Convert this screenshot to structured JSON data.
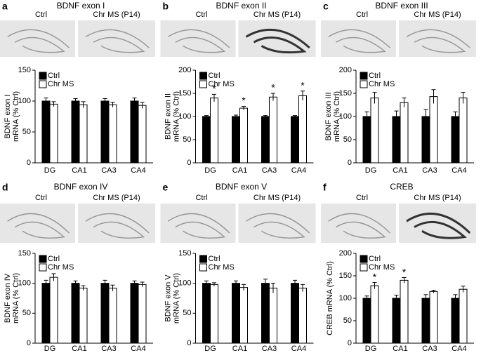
{
  "chart_data": [
    {
      "type": "bar",
      "panel_label": "a",
      "title": "BDNF exon I",
      "image_labels": [
        "Ctrl",
        "Chr MS (P14)"
      ],
      "ylabel": [
        "BDNF exon I",
        "mRNA (% Ctrl)"
      ],
      "categories": [
        "DG",
        "CA1",
        "CA3",
        "CA4"
      ],
      "ylim": [
        0,
        150
      ],
      "yticks": [
        0,
        50,
        100,
        150
      ],
      "series": [
        {
          "name": "Ctrl",
          "color": "#000000",
          "values": [
            100,
            100,
            100,
            100
          ],
          "errors": [
            5,
            4,
            4,
            5
          ]
        },
        {
          "name": "Chr MS",
          "color": "#ffffff",
          "values": [
            95,
            94,
            94,
            93
          ],
          "errors": [
            4,
            5,
            4,
            5
          ]
        }
      ],
      "significance": [
        null,
        null,
        null,
        null
      ]
    },
    {
      "type": "bar",
      "panel_label": "b",
      "title": "BDNF exon II",
      "image_labels": [
        "Ctrl",
        "Chr MS (P14)"
      ],
      "ylabel": [
        "BDNF exon II",
        "mRNA (% Ctrl)"
      ],
      "categories": [
        "DG",
        "CA1",
        "CA3",
        "CA4"
      ],
      "ylim": [
        0,
        200
      ],
      "yticks": [
        0,
        50,
        100,
        150,
        200
      ],
      "series": [
        {
          "name": "Ctrl",
          "color": "#000000",
          "values": [
            100,
            100,
            100,
            100
          ],
          "errors": [
            2,
            3,
            2,
            2
          ]
        },
        {
          "name": "Chr MS",
          "color": "#ffffff",
          "values": [
            140,
            118,
            142,
            145
          ],
          "errors": [
            8,
            4,
            8,
            10
          ]
        }
      ],
      "significance": [
        "*",
        "*",
        "*",
        "*"
      ]
    },
    {
      "type": "bar",
      "panel_label": "c",
      "title": "BDNF exon III",
      "image_labels": [
        "Ctrl",
        "Chr MS (P14)"
      ],
      "ylabel": [
        "BDNF exon III",
        "mRNA (% Ctrl)"
      ],
      "categories": [
        "DG",
        "CA1",
        "CA3",
        "CA4"
      ],
      "ylim": [
        0,
        200
      ],
      "yticks": [
        0,
        50,
        100,
        150,
        200
      ],
      "series": [
        {
          "name": "Ctrl",
          "color": "#000000",
          "values": [
            100,
            100,
            100,
            100
          ],
          "errors": [
            10,
            12,
            15,
            10
          ]
        },
        {
          "name": "Chr MS",
          "color": "#ffffff",
          "values": [
            140,
            130,
            143,
            140
          ],
          "errors": [
            12,
            10,
            15,
            12
          ]
        }
      ],
      "significance": [
        null,
        null,
        null,
        null
      ]
    },
    {
      "type": "bar",
      "panel_label": "d",
      "title": "BDNF exon IV",
      "image_labels": [
        "Ctrl",
        "Chr MS (P14)"
      ],
      "ylabel": [
        "BDNF exon IV",
        "mRNA (% Ctrl)"
      ],
      "categories": [
        "DG",
        "CA1",
        "CA3",
        "CA4"
      ],
      "ylim": [
        0,
        150
      ],
      "yticks": [
        0,
        50,
        100,
        150
      ],
      "series": [
        {
          "name": "Ctrl",
          "color": "#000000",
          "values": [
            100,
            100,
            100,
            100
          ],
          "errors": [
            5,
            4,
            5,
            4
          ]
        },
        {
          "name": "Chr MS",
          "color": "#ffffff",
          "values": [
            110,
            92,
            92,
            98
          ],
          "errors": [
            6,
            4,
            5,
            4
          ]
        }
      ],
      "significance": [
        null,
        null,
        null,
        null
      ]
    },
    {
      "type": "bar",
      "panel_label": "e",
      "title": "BDNF exon V",
      "image_labels": [
        "Ctrl",
        "Chr MS (P14)"
      ],
      "ylabel": [
        "BDNF exon V",
        "mRNA (% Ctrl)"
      ],
      "categories": [
        "DG",
        "CA1",
        "CA3",
        "CA4"
      ],
      "ylim": [
        0,
        150
      ],
      "yticks": [
        0,
        50,
        100,
        150
      ],
      "series": [
        {
          "name": "Ctrl",
          "color": "#000000",
          "values": [
            100,
            100,
            100,
            100
          ],
          "errors": [
            4,
            4,
            7,
            5
          ]
        },
        {
          "name": "Chr MS",
          "color": "#ffffff",
          "values": [
            98,
            93,
            92,
            92
          ],
          "errors": [
            3,
            5,
            8,
            6
          ]
        }
      ],
      "significance": [
        null,
        null,
        null,
        null
      ]
    },
    {
      "type": "bar",
      "panel_label": "f",
      "title": "CREB",
      "image_labels": [
        "Ctrl",
        "Chr MS (P14)"
      ],
      "ylabel": [
        "CREB mRNA (% Ctrl)"
      ],
      "categories": [
        "DG",
        "CA1",
        "CA3",
        "CA4"
      ],
      "ylim": [
        0,
        200
      ],
      "yticks": [
        0,
        50,
        100,
        150,
        200
      ],
      "series": [
        {
          "name": "Ctrl",
          "color": "#000000",
          "values": [
            100,
            100,
            100,
            100
          ],
          "errors": [
            5,
            7,
            8,
            8
          ]
        },
        {
          "name": "Chr MS",
          "color": "#ffffff",
          "values": [
            128,
            140,
            115,
            120
          ],
          "errors": [
            7,
            6,
            3,
            7
          ]
        }
      ],
      "significance": [
        "*",
        "*",
        null,
        null
      ]
    }
  ]
}
